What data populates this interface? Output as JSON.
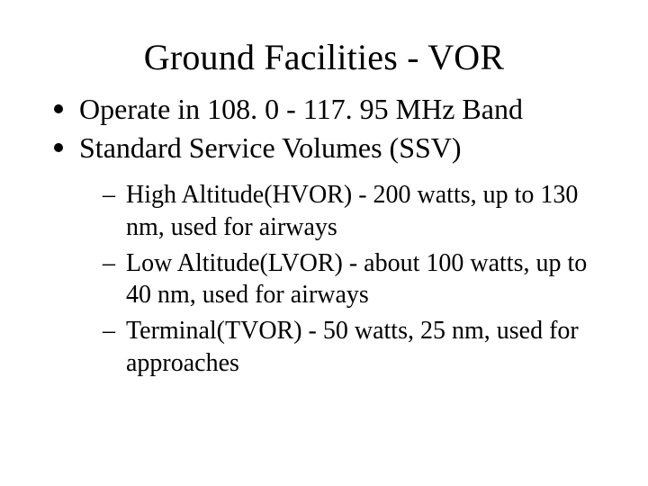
{
  "colors": {
    "background": "#ffffff",
    "text": "#000000",
    "bullet": "#000000"
  },
  "typography": {
    "family": "Times New Roman",
    "title_fontsize_pt": 40,
    "body_fontsize_pt": 32,
    "sub_fontsize_pt": 28,
    "title_weight": 400
  },
  "slide": {
    "title": "Ground Facilities - VOR",
    "bullets": [
      "Operate in 108. 0 - 117. 95 MHz Band",
      "Standard Service Volumes (SSV)"
    ],
    "sub_bullets": [
      " High Altitude(HVOR) - 200 watts, up to 130 nm, used for airways",
      "Low Altitude(LVOR) - about 100 watts, up to 40 nm, used for airways",
      "Terminal(TVOR) - 50 watts,  25 nm, used for approaches"
    ]
  }
}
